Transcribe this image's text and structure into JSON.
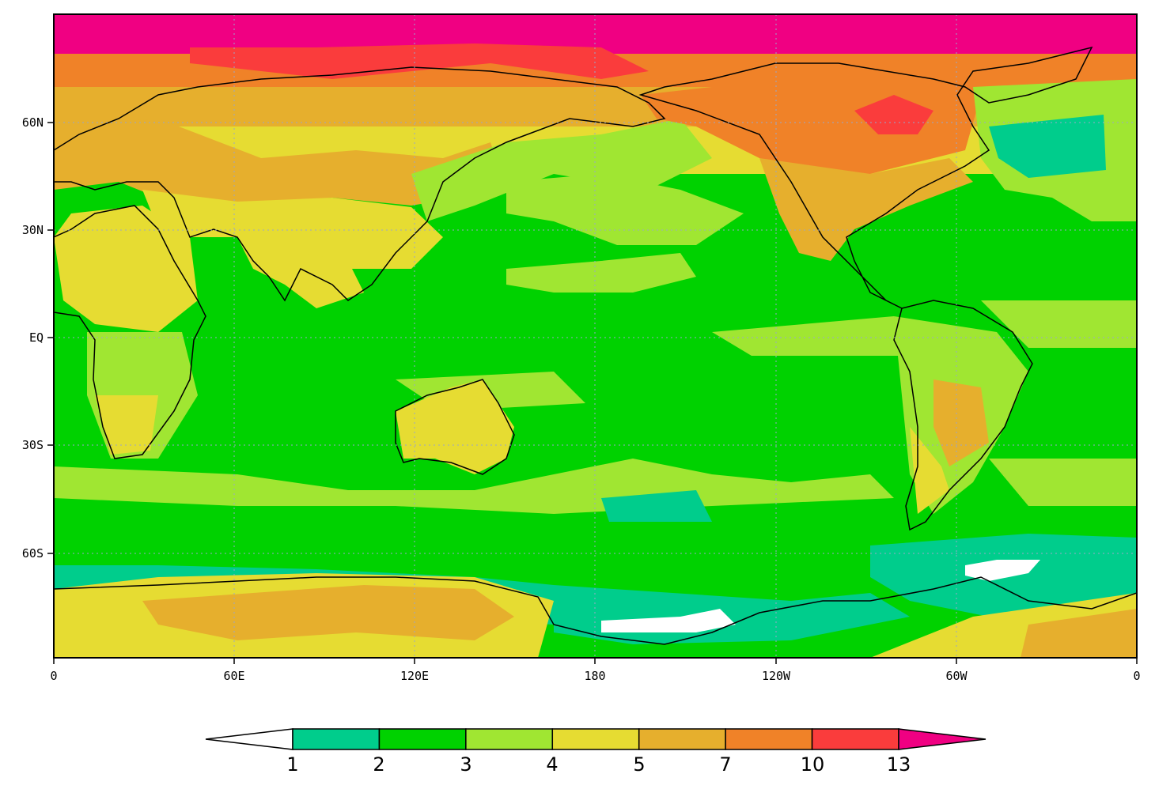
{
  "map": {
    "lon_ticks": [
      "0",
      "60E",
      "120E",
      "180",
      "120W",
      "60W",
      "0"
    ],
    "lat_ticks": [
      "60N",
      "30N",
      "EQ",
      "30S",
      "60S"
    ],
    "colors": {
      "below_1": "#ffffff",
      "c1_2": "#00cd8c",
      "c2_3": "#00d200",
      "c3_4": "#a0e632",
      "c4_5": "#e6dc32",
      "c5_7": "#e6af2d",
      "c7_10": "#f08228",
      "c10_13": "#fa3c3c",
      "above_13": "#f00082"
    }
  },
  "colorbar": {
    "levels": [
      "1",
      "2",
      "3",
      "4",
      "5",
      "7",
      "10",
      "13"
    ],
    "colors": [
      "#00cd8c",
      "#00d200",
      "#a0e632",
      "#e6dc32",
      "#e6af2d",
      "#f08228",
      "#fa3c3c"
    ],
    "under_color": "#ffffff",
    "over_color": "#f00082"
  }
}
